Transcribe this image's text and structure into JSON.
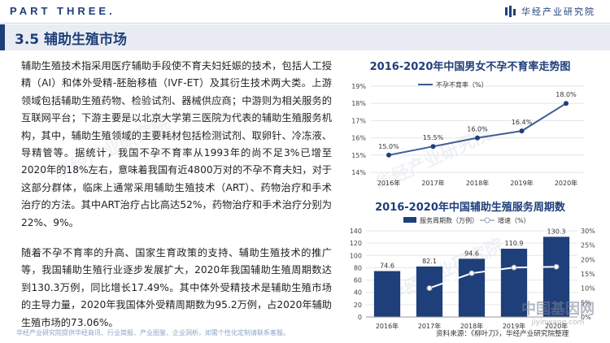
{
  "header": {
    "part": "PART THREE.",
    "brand": "华经产业研究院"
  },
  "section": {
    "title": "3.5 辅助生殖市场"
  },
  "body": {
    "p1": "辅助生殖技术指采用医疗辅助手段使不育夫妇妊娠的技术，包括人工授精（AI）和体外受精-胚胎移植（IVF-ET）及其衍生技术两大类。上游领域包括辅助生殖药物、检验试剂、器械供应商；中游则为相关服务的互联网平台；下游主要是以北京大学第三医院为代表的辅助生殖服务机构，其中，辅助生殖领域的主要耗材包括检测试剂、取卵针、冷冻液、导精管等。据统计，我国不孕不育率从1993年的尚不足3%已增至2020年的18%左右，意味着我国有近4800万对的不孕不育夫妇，对于这部分群体，临床上通常采用辅助生殖技术（ART）、药物治疗和手术治疗的方法。其中ART治疗占比高达52%，药物治疗和手术治疗分别为22%、9%。",
    "p2": "随着不孕不育率的升高、国家生育政策的支持、辅助生殖技术的推广等，我国辅助生殖行业逐步发展扩大，2020年我国辅助生殖周期数达到130.3万例，同比增长17.49%。其中体外受精技术是辅助生殖市场的主导力量，2020年我国体外受精周期数为95.2万例，占2020年辅助生殖市场的73.06%。"
  },
  "footer": {
    "note": "华经产业研究院提供华经商讯、行业简报、产业图鉴、企业洞析，如需个性化定制请联系客服。",
    "source": "资料来源：《柳叶刀》，华经产业研究院整理"
  },
  "watermark": {
    "text": "华经产业研究院",
    "site_cn": "中国基因网",
    "site_url": "jiyinwang.com"
  },
  "colors": {
    "brand": "#1f3f7a",
    "bar": "#1f3f7a",
    "line": "#3f5d96",
    "line_point": "#1f3f7a"
  },
  "chart_data": [
    {
      "type": "line",
      "title": "2016-2020年中国男女不孕不育率走势图",
      "legend": "不孕不育率（%）",
      "categories": [
        "2016年",
        "2017年",
        "2018年",
        "2019年",
        "2020年"
      ],
      "series": [
        {
          "name": "不孕不育率（%）",
          "values": [
            15.0,
            15.5,
            16.0,
            16.4,
            18.0
          ]
        }
      ],
      "data_labels": [
        "15.0%",
        "15.5%",
        "16.0%",
        "16.4%",
        "18.0%"
      ],
      "ylim": [
        14,
        19
      ],
      "yticks": [
        "14%",
        "15%",
        "16%",
        "17%",
        "18%",
        "19%"
      ],
      "grid": true
    },
    {
      "type": "bar",
      "title": "2016-2020年中国辅助生殖服务周期数",
      "categories": [
        "2016年",
        "2017年",
        "2018年",
        "2019年",
        "2020年"
      ],
      "series": [
        {
          "name": "服务周期数（万例）",
          "values": [
            74.6,
            82.1,
            94.6,
            110.9,
            130.3
          ],
          "axis": "left"
        },
        {
          "name": "增速（%）",
          "values": [
            null,
            10.05,
            15.23,
            17.23,
            17.49
          ],
          "axis": "right"
        }
      ],
      "data_labels": [
        "74.6",
        "82.1",
        "94.6",
        "110.9",
        "130.3"
      ],
      "ylim": [
        0,
        140
      ],
      "yticks": [
        "0",
        "20",
        "40",
        "60",
        "80",
        "100",
        "120",
        "140"
      ],
      "y2lim": [
        0,
        30
      ],
      "y2ticks": [
        "0%",
        "5%",
        "10%",
        "15%",
        "20%",
        "25%",
        "30%"
      ],
      "grid": true
    }
  ]
}
